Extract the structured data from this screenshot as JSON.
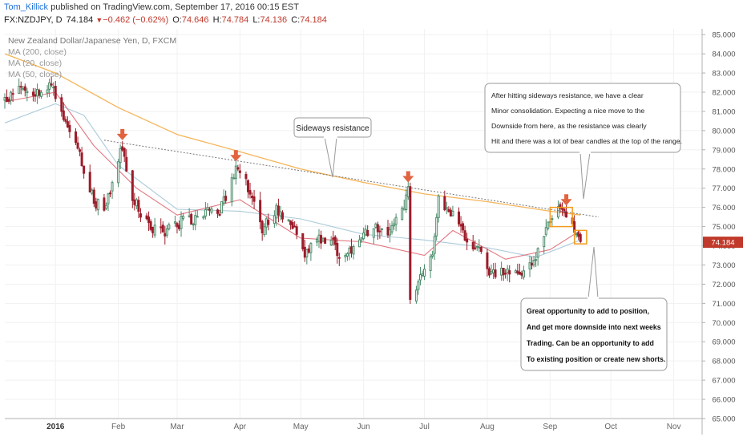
{
  "header": {
    "author": "Tom_Killick",
    "published": "published on TradingView.com, September 17, 2016 00:15 EST",
    "symbol": "FX:NZDJPY, D",
    "last": "74.184",
    "change": "−0.462 (−0.62%)",
    "open_label": "O:",
    "open": "74.646",
    "high_label": "H:",
    "high": "74.784",
    "low_label": "L:",
    "low": "74.136",
    "close_label": "C:",
    "close": "74.184"
  },
  "legend": {
    "instrument": "New Zealand Dollar/Japanese Yen, D, FXCM",
    "ma200": "MA (200, close)",
    "ma20": "MA (20, close)",
    "ma50": "MA (50, close)"
  },
  "colors": {
    "bull": "#4a8c6a",
    "bear": "#9c1c2a",
    "ma200": "#f5b050",
    "ma50": "#a8c8d8",
    "ma20": "#e0707a",
    "arrow": "#e2633f",
    "box": "#f29a1c",
    "price_tag": "#c0392b"
  },
  "annotations": {
    "sideways_label": "Sideways resistance",
    "note_top": [
      "After hitting sideways resistance, we have a clear",
      "Minor consolidation. Expecting a nice move to the",
      "Downside from here, as the resistance was clearly",
      "Hit and there was a lot of bear candles at the top of the range."
    ],
    "note_bottom": [
      "Great opportunity to add to position,",
      "And get more downside into next weeks",
      "Trading. Can be an opportunity to add",
      "To existing position or create new shorts."
    ]
  },
  "chart_data": {
    "type": "candlestick",
    "y_axis_side": "right",
    "ylim": [
      65.0,
      85.3
    ],
    "yticks": [
      65,
      66,
      67,
      68,
      69,
      70,
      71,
      72,
      73,
      74,
      75,
      76,
      77,
      78,
      79,
      80,
      81,
      82,
      83,
      84,
      85
    ],
    "ytick_labels": [
      "65.000",
      "66.000",
      "67.000",
      "68.000",
      "69.000",
      "70.000",
      "71.000",
      "72.000",
      "73.000",
      "74.000",
      "75.000",
      "76.000",
      "77.000",
      "78.000",
      "79.000",
      "80.000",
      "81.000",
      "82.000",
      "83.000",
      "84.000",
      "85.000"
    ],
    "x_start": "2015-12-07",
    "x_end": "2016-11-15",
    "xticks": [
      {
        "date": "2016-01-01",
        "label": "2016",
        "bold": true
      },
      {
        "date": "2016-02-01",
        "label": "Feb"
      },
      {
        "date": "2016-03-01",
        "label": "Mar"
      },
      {
        "date": "2016-04-01",
        "label": "Apr"
      },
      {
        "date": "2016-05-01",
        "label": "May"
      },
      {
        "date": "2016-06-01",
        "label": "Jun"
      },
      {
        "date": "2016-07-01",
        "label": "Jul"
      },
      {
        "date": "2016-08-01",
        "label": "Aug"
      },
      {
        "date": "2016-09-01",
        "label": "Sep"
      },
      {
        "date": "2016-10-01",
        "label": "Oct"
      },
      {
        "date": "2016-11-01",
        "label": "Nov"
      }
    ],
    "last_price": 74.184,
    "last_price_label": "74.184",
    "close_path": [
      [
        "2015-12-07",
        81.6
      ],
      [
        "2015-12-15",
        82.4
      ],
      [
        "2015-12-22",
        82.0
      ],
      [
        "2015-12-30",
        82.3
      ],
      [
        "2016-01-06",
        80.5
      ],
      [
        "2016-01-12",
        79.2
      ],
      [
        "2016-01-18",
        76.8
      ],
      [
        "2016-01-25",
        75.6
      ],
      [
        "2016-02-01",
        78.6
      ],
      [
        "2016-02-03",
        79.1
      ],
      [
        "2016-02-08",
        76.4
      ],
      [
        "2016-02-15",
        75.2
      ],
      [
        "2016-02-22",
        74.6
      ],
      [
        "2016-03-01",
        75.2
      ],
      [
        "2016-03-08",
        75.4
      ],
      [
        "2016-03-15",
        75.9
      ],
      [
        "2016-03-22",
        75.8
      ],
      [
        "2016-03-30",
        78.0
      ],
      [
        "2016-04-05",
        77.0
      ],
      [
        "2016-04-12",
        74.8
      ],
      [
        "2016-04-19",
        75.8
      ],
      [
        "2016-04-26",
        75.4
      ],
      [
        "2016-05-02",
        73.6
      ],
      [
        "2016-05-09",
        74.5
      ],
      [
        "2016-05-16",
        74.1
      ],
      [
        "2016-05-23",
        73.4
      ],
      [
        "2016-05-30",
        74.1
      ],
      [
        "2016-06-06",
        75.2
      ],
      [
        "2016-06-13",
        74.3
      ],
      [
        "2016-06-20",
        75.8
      ],
      [
        "2016-06-23",
        76.9
      ],
      [
        "2016-06-24",
        71.4
      ],
      [
        "2016-06-28",
        72.2
      ],
      [
        "2016-07-05",
        73.8
      ],
      [
        "2016-07-08",
        76.4
      ],
      [
        "2016-07-14",
        75.8
      ],
      [
        "2016-07-20",
        74.6
      ],
      [
        "2016-07-28",
        73.9
      ],
      [
        "2016-08-03",
        72.6
      ],
      [
        "2016-08-10",
        72.8
      ],
      [
        "2016-08-17",
        72.4
      ],
      [
        "2016-08-24",
        73.4
      ],
      [
        "2016-08-31",
        75.0
      ],
      [
        "2016-09-05",
        75.7
      ],
      [
        "2016-09-09",
        75.6
      ],
      [
        "2016-09-13",
        74.7
      ],
      [
        "2016-09-16",
        74.18
      ]
    ],
    "ma200_path": [
      [
        "2015-12-07",
        84.0
      ],
      [
        "2016-01-01",
        83.0
      ],
      [
        "2016-02-01",
        81.2
      ],
      [
        "2016-03-01",
        79.8
      ],
      [
        "2016-04-01",
        78.9
      ],
      [
        "2016-05-01",
        78.0
      ],
      [
        "2016-06-01",
        77.3
      ],
      [
        "2016-07-01",
        76.7
      ],
      [
        "2016-08-01",
        76.3
      ],
      [
        "2016-09-01",
        75.8
      ],
      [
        "2016-09-16",
        75.6
      ]
    ],
    "ma50_path": [
      [
        "2015-12-07",
        80.4
      ],
      [
        "2016-01-01",
        81.4
      ],
      [
        "2016-01-15",
        80.8
      ],
      [
        "2016-02-01",
        78.2
      ],
      [
        "2016-03-01",
        75.9
      ],
      [
        "2016-04-01",
        75.8
      ],
      [
        "2016-05-01",
        75.4
      ],
      [
        "2016-06-01",
        74.6
      ],
      [
        "2016-07-01",
        74.3
      ],
      [
        "2016-08-01",
        73.9
      ],
      [
        "2016-08-25",
        73.4
      ],
      [
        "2016-09-16",
        74.3
      ]
    ],
    "ma20_path": [
      [
        "2015-12-07",
        81.5
      ],
      [
        "2016-01-01",
        82.0
      ],
      [
        "2016-01-20",
        79.2
      ],
      [
        "2016-02-10",
        77.0
      ],
      [
        "2016-03-01",
        75.6
      ],
      [
        "2016-04-01",
        76.4
      ],
      [
        "2016-05-01",
        74.4
      ],
      [
        "2016-06-01",
        74.2
      ],
      [
        "2016-07-01",
        73.5
      ],
      [
        "2016-07-15",
        74.8
      ],
      [
        "2016-08-10",
        73.3
      ],
      [
        "2016-09-01",
        73.8
      ],
      [
        "2016-09-16",
        74.8
      ]
    ],
    "resistance_line": [
      [
        "2016-01-25",
        79.5
      ],
      [
        "2016-09-25",
        75.5
      ]
    ],
    "arrows": [
      {
        "date": "2016-02-03",
        "price": 79.5
      },
      {
        "date": "2016-03-30",
        "price": 78.4
      },
      {
        "date": "2016-06-23",
        "price": 77.3
      },
      {
        "date": "2016-09-09",
        "price": 76.1
      }
    ],
    "boxes": [
      {
        "from": "2016-09-01",
        "to": "2016-09-12",
        "low": 75.0,
        "high": 76.0
      },
      {
        "from": "2016-09-13",
        "to": "2016-09-19",
        "low": 74.1,
        "high": 74.8
      }
    ]
  }
}
